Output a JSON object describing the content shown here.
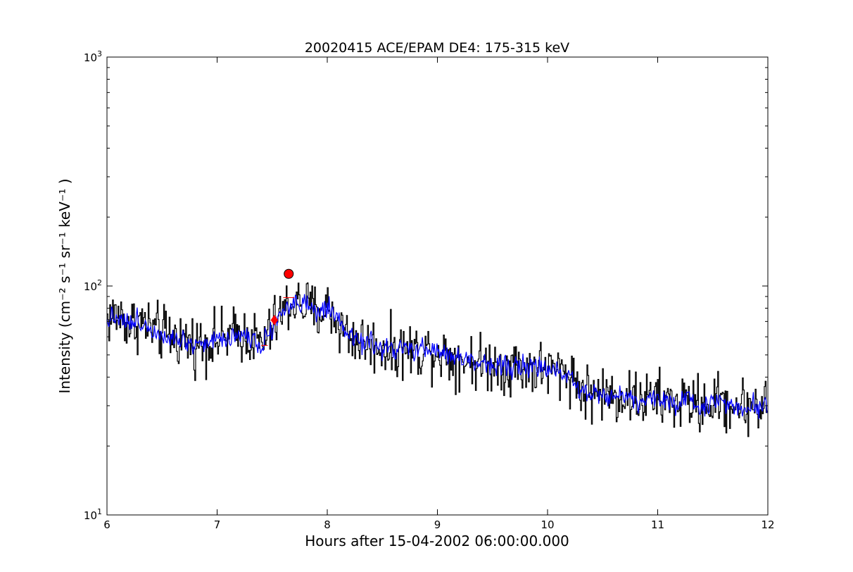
{
  "chart_data": {
    "type": "line",
    "title": "20020415 ACE/EPAM DE4: 175-315 keV",
    "xlabel": "Hours after 15-04-2002 06:00:00.000",
    "ylabel": "Intensity (cm⁻² s⁻¹ sr⁻¹ keV⁻¹ )",
    "xlim": [
      6,
      12
    ],
    "ylim": [
      10,
      1000
    ],
    "yscale": "log",
    "grid": false,
    "xticks": [
      6,
      7,
      8,
      9,
      10,
      11,
      12
    ],
    "xtick_labels": [
      "6",
      "7",
      "8",
      "9",
      "10",
      "11",
      "12"
    ],
    "ytick_labels": [
      {
        "base": "10",
        "exp": "1"
      },
      {
        "base": "10",
        "exp": "2"
      },
      {
        "base": "10",
        "exp": "3"
      }
    ],
    "series": [
      {
        "color": "#000000",
        "style": "step",
        "x": [
          6.0,
          6.1,
          6.2,
          6.3,
          6.4,
          6.5,
          6.6,
          6.7,
          6.8,
          6.9,
          7.0,
          7.1,
          7.2,
          7.3,
          7.4,
          7.5,
          7.6,
          7.7,
          7.8,
          7.9,
          8.0,
          8.1,
          8.2,
          8.3,
          8.4,
          8.5,
          8.6,
          8.7,
          8.8,
          8.9,
          9.0,
          9.1,
          9.2,
          9.3,
          9.4,
          9.5,
          9.6,
          9.7,
          9.8,
          9.9,
          10.0,
          10.1,
          10.2,
          10.3,
          10.4,
          10.5,
          10.6,
          10.7,
          10.8,
          10.9,
          11.0,
          11.1,
          11.2,
          11.3,
          11.4,
          11.5,
          11.6,
          11.7,
          11.8,
          11.9,
          12.0
        ],
        "values": [
          72,
          75,
          68,
          70,
          65,
          62,
          60,
          58,
          56,
          57,
          58,
          60,
          62,
          60,
          55,
          66,
          78,
          85,
          82,
          76,
          80,
          68,
          60,
          58,
          55,
          54,
          52,
          53,
          52,
          53,
          52,
          50,
          48,
          47,
          46,
          46,
          45,
          45,
          44,
          44,
          43,
          42,
          42,
          35,
          34,
          34,
          33,
          33,
          32,
          32,
          32,
          31,
          31,
          31,
          30,
          31,
          31,
          30,
          30,
          30,
          30
        ],
        "noise": 0.42,
        "step_hours": 0.0083
      },
      {
        "color": "#0000ff",
        "style": "line",
        "x": [
          6.0,
          6.1,
          6.2,
          6.3,
          6.4,
          6.5,
          6.6,
          6.7,
          6.8,
          6.9,
          7.0,
          7.1,
          7.2,
          7.3,
          7.4,
          7.5,
          7.6,
          7.7,
          7.8,
          7.9,
          8.0,
          8.1,
          8.2,
          8.3,
          8.4,
          8.5,
          8.6,
          8.7,
          8.8,
          8.9,
          9.0,
          9.1,
          9.2,
          9.3,
          9.4,
          9.5,
          9.6,
          9.7,
          9.8,
          9.9,
          10.0,
          10.1,
          10.2,
          10.3,
          10.4,
          10.5,
          10.6,
          10.7,
          10.8,
          10.9,
          11.0,
          11.1,
          11.2,
          11.3,
          11.4,
          11.5,
          11.6,
          11.7,
          11.8,
          11.9,
          12.0
        ],
        "values": [
          72,
          75,
          68,
          70,
          65,
          62,
          60,
          58,
          56,
          57,
          58,
          60,
          62,
          60,
          55,
          66,
          78,
          85,
          82,
          76,
          80,
          68,
          60,
          58,
          55,
          54,
          52,
          53,
          52,
          53,
          52,
          50,
          48,
          47,
          46,
          46,
          45,
          45,
          44,
          44,
          43,
          42,
          42,
          35,
          34,
          34,
          33,
          33,
          32,
          32,
          32,
          31,
          31,
          31,
          30,
          31,
          31,
          30,
          30,
          30,
          30
        ],
        "noise": 0.17,
        "step_hours": 0.0083
      }
    ],
    "markers": [
      {
        "shape": "circle",
        "x": 7.65,
        "y": 113,
        "color": "#ff0000"
      },
      {
        "shape": "diamond",
        "x": 7.52,
        "y": 71,
        "color": "#ff0000"
      }
    ],
    "errorbars": [
      {
        "x": 7.43,
        "y": 55,
        "xerr": 0.03,
        "color": "#ff0000"
      },
      {
        "x": 7.65,
        "y": 89,
        "xerr": 0.05,
        "color": "#ff0000"
      }
    ]
  }
}
